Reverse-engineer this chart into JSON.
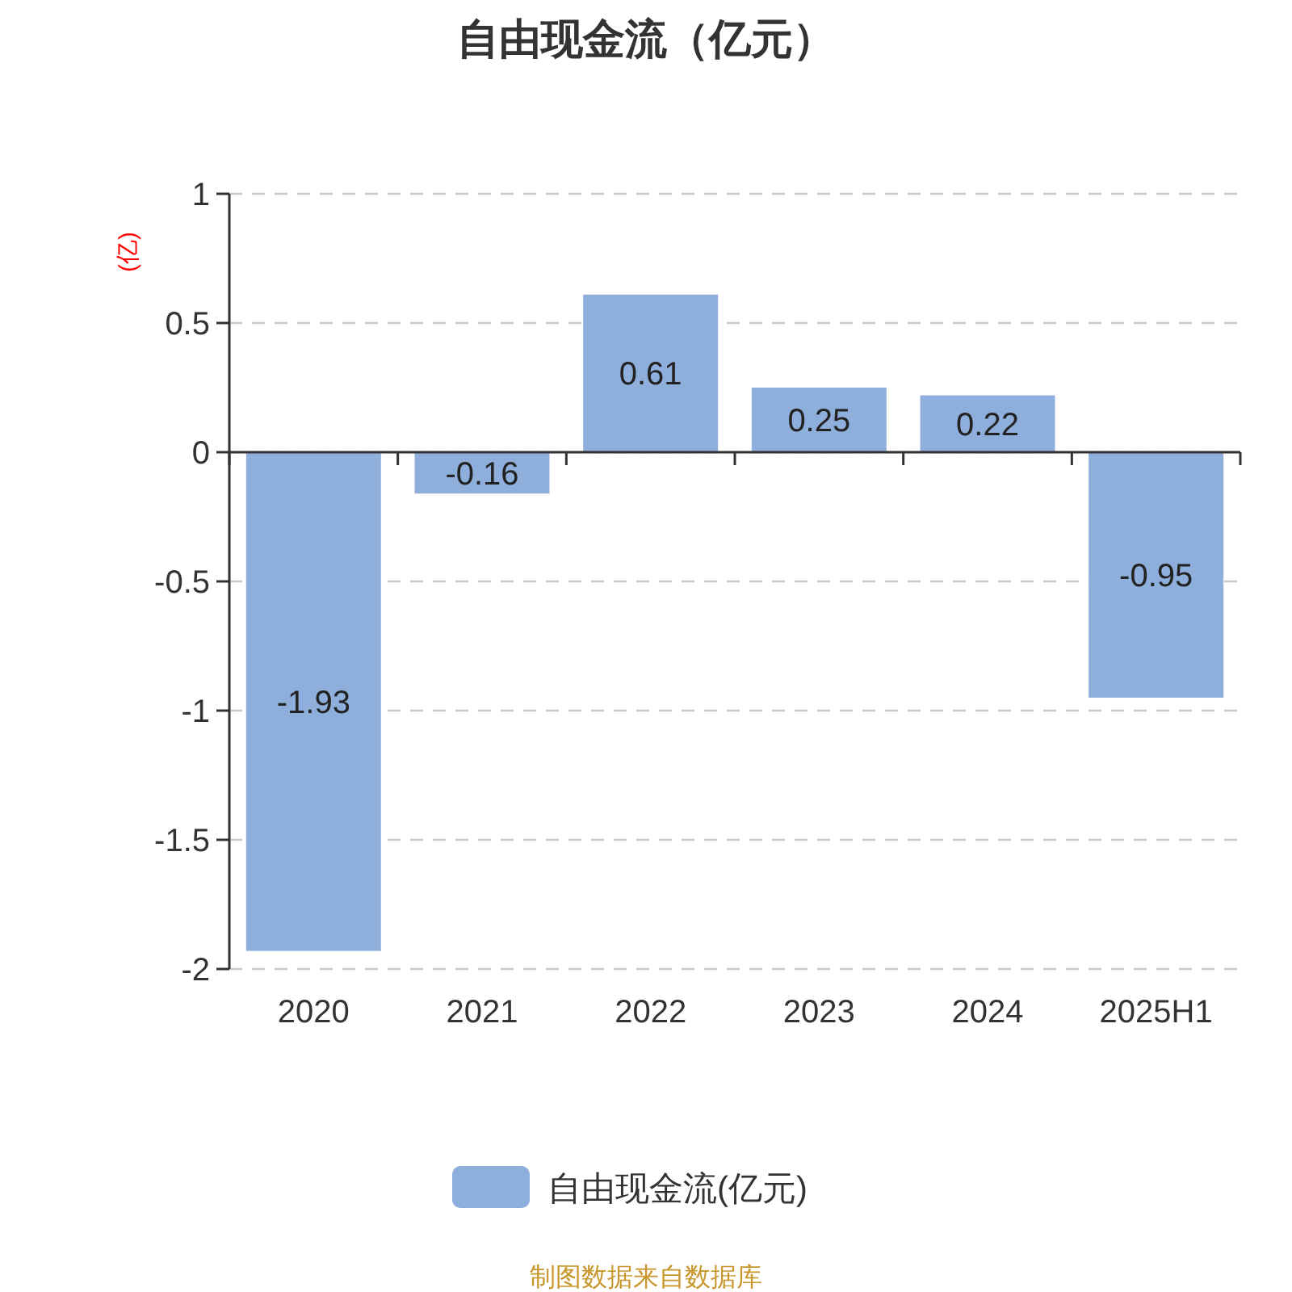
{
  "chart_data": {
    "type": "bar",
    "title": "自由现金流（亿元）",
    "ylabel": "(亿)",
    "categories": [
      "2020",
      "2021",
      "2022",
      "2023",
      "2024",
      "2025H1"
    ],
    "series": [
      {
        "name": "自由现金流(亿元)",
        "color": "#8eaedb",
        "values": [
          -1.93,
          -0.16,
          0.61,
          0.25,
          0.22,
          -0.95
        ]
      }
    ],
    "ylim": [
      -2,
      1
    ],
    "yticks": [
      -2,
      -1.5,
      -1,
      -0.5,
      0,
      0.5,
      1
    ],
    "grid": "y",
    "legend": "bottom",
    "data_labels": true,
    "annotations": [
      "制图数据来自数据库"
    ]
  }
}
